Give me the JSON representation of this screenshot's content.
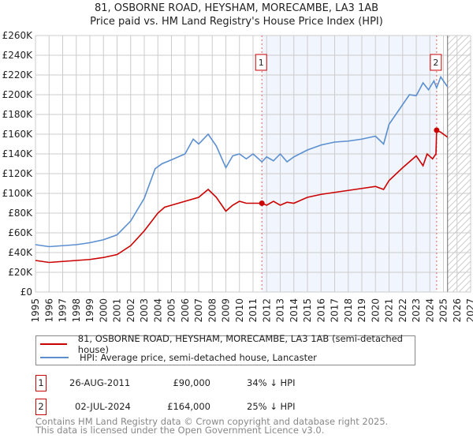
{
  "title": "81, OSBORNE ROAD, HEYSHAM, MORECAMBE, LA3 1AB",
  "subtitle": "Price paid vs. HM Land Registry's House Price Index (HPI)",
  "chart_data": {
    "type": "line",
    "xlim": [
      1995,
      2027
    ],
    "ylim": [
      0,
      260000
    ],
    "x_ticks": [
      "1995",
      "1996",
      "1997",
      "1998",
      "1999",
      "2000",
      "2001",
      "2002",
      "2003",
      "2004",
      "2005",
      "2006",
      "2007",
      "2008",
      "2009",
      "2010",
      "2011",
      "2012",
      "2013",
      "2014",
      "2015",
      "2016",
      "2017",
      "2018",
      "2019",
      "2020",
      "2021",
      "2022",
      "2023",
      "2024",
      "2025",
      "2026",
      "2027"
    ],
    "y_ticks": [
      {
        "v": 0,
        "label": "£0"
      },
      {
        "v": 20000,
        "label": "£20K"
      },
      {
        "v": 40000,
        "label": "£40K"
      },
      {
        "v": 60000,
        "label": "£60K"
      },
      {
        "v": 80000,
        "label": "£80K"
      },
      {
        "v": 100000,
        "label": "£100K"
      },
      {
        "v": 120000,
        "label": "£120K"
      },
      {
        "v": 140000,
        "label": "£140K"
      },
      {
        "v": 160000,
        "label": "£160K"
      },
      {
        "v": 180000,
        "label": "£180K"
      },
      {
        "v": 200000,
        "label": "£200K"
      },
      {
        "v": 220000,
        "label": "£220K"
      },
      {
        "v": 240000,
        "label": "£240K"
      },
      {
        "v": 260000,
        "label": "£260K"
      }
    ],
    "grid": true,
    "shaded_range": [
      2011.65,
      2024.5
    ],
    "future_from": 2025.3,
    "series": [
      {
        "name": "81, OSBORNE ROAD, HEYSHAM, MORECAMBE, LA3 1AB (semi-detached house)",
        "color": "#cc0000",
        "points": [
          [
            1995,
            32000
          ],
          [
            1996,
            30000
          ],
          [
            1997,
            31000
          ],
          [
            1998,
            32000
          ],
          [
            1999,
            33000
          ],
          [
            2000,
            35000
          ],
          [
            2001,
            38000
          ],
          [
            2002,
            47000
          ],
          [
            2003,
            62000
          ],
          [
            2004,
            80000
          ],
          [
            2004.5,
            86000
          ],
          [
            2005,
            88000
          ],
          [
            2006,
            92000
          ],
          [
            2007,
            96000
          ],
          [
            2007.7,
            104000
          ],
          [
            2008.3,
            96000
          ],
          [
            2009,
            82000
          ],
          [
            2009.5,
            88000
          ],
          [
            2010,
            92000
          ],
          [
            2010.5,
            90000
          ],
          [
            2011.65,
            90000
          ],
          [
            2012,
            88000
          ],
          [
            2012.5,
            92000
          ],
          [
            2013,
            88000
          ],
          [
            2013.5,
            91000
          ],
          [
            2014,
            90000
          ],
          [
            2015,
            96000
          ],
          [
            2016,
            99000
          ],
          [
            2017,
            101000
          ],
          [
            2018,
            103000
          ],
          [
            2019,
            105000
          ],
          [
            2020,
            107000
          ],
          [
            2020.6,
            104000
          ],
          [
            2021,
            113000
          ],
          [
            2022,
            126000
          ],
          [
            2023,
            138000
          ],
          [
            2023.5,
            128000
          ],
          [
            2023.8,
            140000
          ],
          [
            2024.2,
            135000
          ],
          [
            2024.45,
            140000
          ],
          [
            2024.5,
            164000
          ],
          [
            2024.8,
            162000
          ],
          [
            2025.3,
            157000
          ]
        ]
      },
      {
        "name": "HPI: Average price, semi-detached house, Lancaster",
        "color": "#5b8fd0",
        "points": [
          [
            1995,
            48000
          ],
          [
            1996,
            46000
          ],
          [
            1997,
            47000
          ],
          [
            1998,
            48000
          ],
          [
            1999,
            50000
          ],
          [
            2000,
            53000
          ],
          [
            2001,
            58000
          ],
          [
            2002,
            72000
          ],
          [
            2003,
            95000
          ],
          [
            2003.8,
            125000
          ],
          [
            2004.3,
            130000
          ],
          [
            2005,
            134000
          ],
          [
            2006,
            140000
          ],
          [
            2006.6,
            155000
          ],
          [
            2007,
            150000
          ],
          [
            2007.7,
            160000
          ],
          [
            2008.3,
            148000
          ],
          [
            2009,
            126000
          ],
          [
            2009.5,
            138000
          ],
          [
            2010,
            140000
          ],
          [
            2010.5,
            135000
          ],
          [
            2011,
            140000
          ],
          [
            2011.65,
            132000
          ],
          [
            2012,
            137000
          ],
          [
            2012.5,
            133000
          ],
          [
            2013,
            140000
          ],
          [
            2013.5,
            132000
          ],
          [
            2014,
            137000
          ],
          [
            2015,
            144000
          ],
          [
            2016,
            149000
          ],
          [
            2017,
            152000
          ],
          [
            2018,
            153000
          ],
          [
            2019,
            155000
          ],
          [
            2020,
            158000
          ],
          [
            2020.6,
            150000
          ],
          [
            2021,
            170000
          ],
          [
            2022,
            190000
          ],
          [
            2022.5,
            200000
          ],
          [
            2023,
            199000
          ],
          [
            2023.5,
            212000
          ],
          [
            2023.9,
            205000
          ],
          [
            2024.3,
            214000
          ],
          [
            2024.5,
            207000
          ],
          [
            2024.8,
            218000
          ],
          [
            2025.3,
            208000
          ]
        ]
      }
    ],
    "sales": [
      {
        "id": "1",
        "x": 2011.65,
        "y": 90000
      },
      {
        "id": "2",
        "x": 2024.5,
        "y": 164000
      }
    ]
  },
  "legend": {
    "red_label": "81, OSBORNE ROAD, HEYSHAM, MORECAMBE, LA3 1AB (semi-detached house)",
    "blue_label": "HPI: Average price, semi-detached house, Lancaster"
  },
  "transactions": [
    {
      "id": "1",
      "date": "26-AUG-2011",
      "price": "£90,000",
      "hpi": "34% ↓ HPI"
    },
    {
      "id": "2",
      "date": "02-JUL-2024",
      "price": "£164,000",
      "hpi": "25% ↓ HPI"
    }
  ],
  "footer": {
    "line1": "Contains HM Land Registry data © Crown copyright and database right 2025.",
    "line2": "This data is licensed under the Open Government Licence v3.0."
  }
}
